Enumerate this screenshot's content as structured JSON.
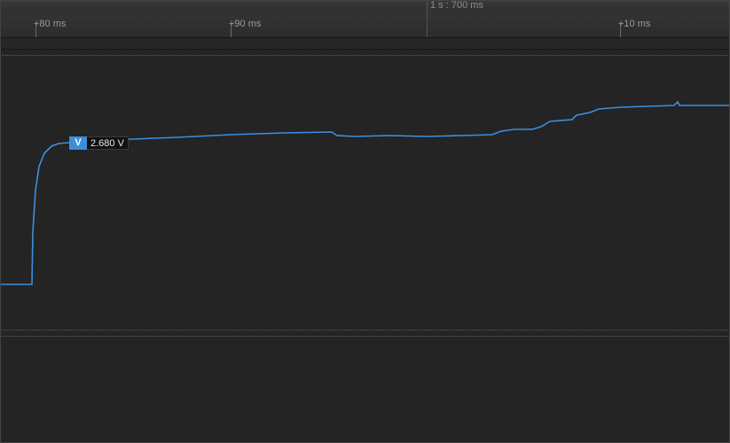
{
  "header": {
    "cursor_time": "1 s : 700 ms"
  },
  "ruler": {
    "ticks": [
      {
        "label": "+80 ms"
      },
      {
        "label": "+90 ms"
      },
      {
        "label": "+10 ms"
      }
    ]
  },
  "marker": {
    "key": "V",
    "value": "2.680 V"
  },
  "colors": {
    "trace": "#3b8fe0",
    "background": "#242424"
  }
}
